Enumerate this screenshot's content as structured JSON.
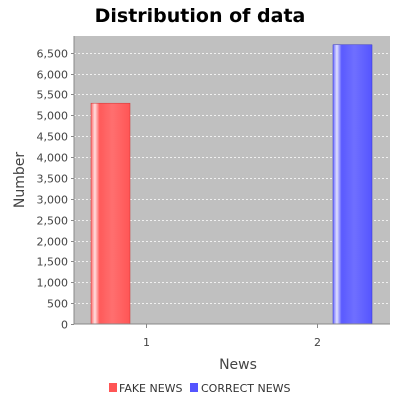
{
  "chart_data": {
    "type": "bar",
    "title": "Distribution of data",
    "xlabel": "News",
    "ylabel": "Number",
    "categories": [
      "1",
      "2"
    ],
    "series": [
      {
        "name": "FAKE NEWS",
        "color": "#ff5555",
        "values": [
          5290,
          null
        ]
      },
      {
        "name": "CORRECT NEWS",
        "color": "#5555ff",
        "values": [
          null,
          6690
        ]
      }
    ],
    "ylim": [
      0,
      6900
    ],
    "yticks": [
      0,
      500,
      1000,
      1500,
      2000,
      2500,
      3000,
      3500,
      4000,
      4500,
      5000,
      5500,
      6000,
      6500
    ],
    "ytick_labels": [
      "0",
      "500",
      "1,000",
      "1,500",
      "2,000",
      "2,500",
      "3,000",
      "3,500",
      "4,000",
      "4,500",
      "5,000",
      "5,500",
      "6,000",
      "6,500"
    ],
    "grid": true,
    "legend_position": "bottom",
    "plot_background": "#c0c0c0",
    "grid_color": "#ffffff"
  }
}
